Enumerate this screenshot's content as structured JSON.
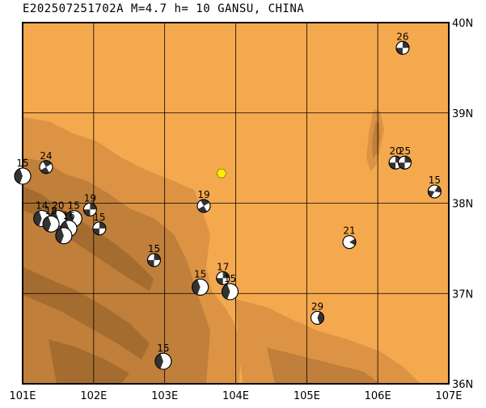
{
  "map": {
    "title": "E202507251702A M=4.7 h= 10 GANSU, CHINA",
    "lon_range": [
      101,
      107
    ],
    "lat_range": [
      36,
      40
    ],
    "lon_ticks": [
      "101E",
      "102E",
      "103E",
      "104E",
      "105E",
      "106E",
      "107E"
    ],
    "lat_ticks": [
      "40N",
      "39N",
      "38N",
      "37N",
      "36N"
    ],
    "colors": {
      "lowland": "#f5a94e",
      "mid": "#dc9444",
      "high": "#c07f3a",
      "peak": "#a56c2f",
      "grid": "#000000",
      "beachball_dark": "#333333",
      "beachball_light": "#ffffff",
      "epicenter_star": "#ffee00"
    },
    "epicenter": {
      "lon": 103.8,
      "lat": 38.33,
      "shape": "hexagon"
    },
    "events": [
      {
        "label": "26",
        "lon": 106.35,
        "lat": 39.72,
        "style": "a"
      },
      {
        "label": "24",
        "lon": 101.33,
        "lat": 38.4,
        "style": "b"
      },
      {
        "label": "15",
        "lon": 101.0,
        "lat": 38.3,
        "style": "c"
      },
      {
        "label": "20",
        "lon": 106.25,
        "lat": 38.45,
        "style": "a"
      },
      {
        "label": "25",
        "lon": 106.38,
        "lat": 38.45,
        "style": "a"
      },
      {
        "label": "15",
        "lon": 106.8,
        "lat": 38.13,
        "style": "d"
      },
      {
        "label": "19",
        "lon": 103.55,
        "lat": 37.97,
        "style": "b"
      },
      {
        "label": "19",
        "lon": 101.95,
        "lat": 37.93,
        "style": "a"
      },
      {
        "label": "14",
        "lon": 101.27,
        "lat": 37.83,
        "style": "c"
      },
      {
        "label": "20",
        "lon": 101.5,
        "lat": 37.83,
        "style": "c"
      },
      {
        "label": "15",
        "lon": 101.72,
        "lat": 37.83,
        "style": "c"
      },
      {
        "label": "18",
        "lon": 101.4,
        "lat": 37.77,
        "style": "c"
      },
      {
        "label": "16",
        "lon": 101.65,
        "lat": 37.72,
        "style": "c"
      },
      {
        "label": "",
        "lon": 101.58,
        "lat": 37.64,
        "style": "c"
      },
      {
        "label": "15",
        "lon": 102.08,
        "lat": 37.72,
        "style": "a"
      },
      {
        "label": "21",
        "lon": 105.6,
        "lat": 37.57,
        "style": "e"
      },
      {
        "label": "15",
        "lon": 102.85,
        "lat": 37.37,
        "style": "a"
      },
      {
        "label": "17",
        "lon": 103.82,
        "lat": 37.17,
        "style": "a"
      },
      {
        "label": "15",
        "lon": 103.5,
        "lat": 37.07,
        "style": "c"
      },
      {
        "label": "15",
        "lon": 103.92,
        "lat": 37.02,
        "style": "c"
      },
      {
        "label": "29",
        "lon": 105.15,
        "lat": 36.73,
        "style": "f"
      },
      {
        "label": "15",
        "lon": 102.98,
        "lat": 36.25,
        "style": "c"
      }
    ]
  }
}
